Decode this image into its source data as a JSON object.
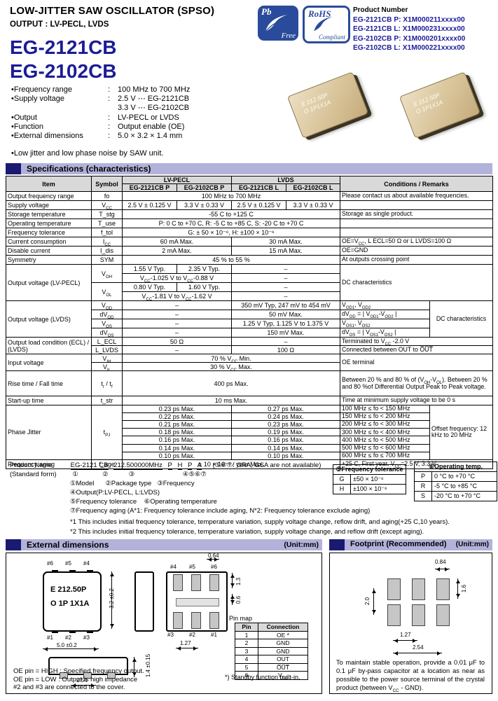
{
  "header": {
    "title": "LOW-JITTER SAW OSCILLATOR (SPSO)",
    "subtitle": "OUTPUT : LV-PECL, LVDS",
    "model_line1": "EG-2121CB",
    "model_line2": "EG-2102CB",
    "pb_logo": {
      "pb": "Pb",
      "free": "Free"
    },
    "rohs_logo": {
      "rohs": "RoHS",
      "compliant": "Compliant"
    },
    "product_number_label": "Product Number",
    "product_numbers": [
      "EG-2121CB P: X1M000211xxxx00",
      "EG-2121CB L: X1M000231xxxx00",
      "EG-2102CB P: X1M000201xxxx00",
      "EG-2102CB L: X1M000221xxxx00"
    ],
    "chip_marking1": "E 212.50P",
    "chip_marking2": "O 1P1X1A"
  },
  "features": {
    "rows": [
      {
        "label": "•Frequency range",
        "colon": ":",
        "value": "100 MHz to 700 MHz"
      },
      {
        "label": "•Supply voltage",
        "colon": ":",
        "value": "2.5 V ⋯ EG-2121CB"
      },
      {
        "label": "",
        "colon": "",
        "value": "3.3 V ⋯ EG-2102CB"
      },
      {
        "label": "•Output",
        "colon": ":",
        "value": "LV-PECL or LVDS"
      },
      {
        "label": "•Function",
        "colon": ":",
        "value": "Output enable (OE)"
      },
      {
        "label": "•External dimensions",
        "colon": ":",
        "value": "5.0 × 3.2 × 1.4 mm"
      }
    ],
    "note": "•Low jitter and low phase noise by SAW unit."
  },
  "spec": {
    "section_title": "Specifications (characteristics)",
    "h_item": "Item",
    "h_symbol": "Symbol",
    "h_pecl": "LV-PECL",
    "h_lvds": "LVDS",
    "h_cond": "Conditions / Remarks",
    "h_m1": "EG-2121CB P",
    "h_m2": "EG-2102CB P",
    "h_m3": "EG-2121CB L",
    "h_m4": "EG-2102CB L",
    "rows": {
      "ofr": {
        "item": "Output frequency range",
        "sym": "fo",
        "val": "100 MHz to 700 MHz",
        "cond": "Please contact us about available frequencies."
      },
      "vcc": {
        "item": "Supply voltage",
        "sym": "V~CC~",
        "v1": "2.5 V ± 0.125 V",
        "v2": "3.3 V ± 0.33 V",
        "v3": "2.5 V ± 0.125 V",
        "v4": "3.3 V ± 0.33 V",
        "cond": ""
      },
      "tstg": {
        "item": "Storage temperature",
        "sym": "T_stg",
        "val": "-55 C to +125 C",
        "cond": "Storage as single product."
      },
      "tuse": {
        "item": "Operating temperature",
        "sym": "T_use",
        "val": "P: 0 C to +70 C, R: -5 C to +85 C, S: -20 C to +70 C",
        "cond": ""
      },
      "ftol": {
        "item": "Frequency tolerance",
        "sym": "f_tol",
        "val": "G: ± 50 × 10⁻⁶, H: ±100 × 10⁻⁶",
        "cond": ""
      },
      "icc": {
        "item": "Current consumption",
        "sym": "I~CC~",
        "pecl": "60 mA Max.",
        "lvds": "30 mA Max.",
        "cond": "OE=V~CC~, L ECL=50 Ω or L LVDS=100 Ω"
      },
      "idis": {
        "item": "Disable current",
        "sym": "I_dis",
        "pecl": "2 mA Max.",
        "lvds": "15 mA Max.",
        "cond": "OE=GND"
      },
      "symmetry": {
        "item": "Symmetry",
        "sym": "SYM",
        "val": "45 % to 55 %",
        "cond": "At outputs crossing point"
      },
      "pecl_out": {
        "item": "Output voltage (LV-PECL)",
        "sym_voh": "V~OH~",
        "sym_vol": "V~OL~",
        "voh_t1": "1.55 V Typ.",
        "voh_t2": "2.35 V Typ.",
        "voh_rng": "V~CC~-1.025 V to V~CC~-0.88 V",
        "vol_t1": "0.80 V Typ.",
        "vol_t2": "1.60 V Typ.",
        "vol_rng": "V~CC~-1.81 V to V~CC~-1.62 V",
        "dash": "–",
        "cond": "DC characteristics"
      },
      "lvds_out": {
        "item": "Output voltage (LVDS)",
        "sym_vod": "V~OD~",
        "sym_dvod": "dV~OD~",
        "sym_vos": "V~OS~",
        "sym_dvos": "dV~OS~",
        "dash": "–",
        "vod": "350 mV Typ,  247 mV to 454 mV",
        "dvod": "50 mV Max.",
        "vos": "1.25 V Typ,  1.125 V to 1.375 V",
        "dvos": "150 mV Max.",
        "c_vod": "V~OD1~, V~OD2~",
        "c_dvod": "dV~OD~ = | V~OD1~-V~OD2~ |",
        "c_vos": "V~OS1~, V~OS2~",
        "c_dvos": "dV~OS~ = | V~OS1~-V~OS2~ |",
        "cond": "DC characteristics"
      },
      "load": {
        "item": "Output load condition (ECL) / (LVDS)",
        "sym1": "L_ECL",
        "sym2": "L_LVDS",
        "v1": "50 Ω",
        "dash": "–",
        "v2": "100 Ω",
        "cond1": "Terminated to V~CC~ -2.0 V",
        "cond2": "Connected between OUT to O̅U̅T̅"
      },
      "input": {
        "item": "Input voltage",
        "sym1": "V~IH~",
        "sym2": "V~IL~",
        "v1": "70 % V~CC~ Min.",
        "v2": "30 % V~CC~ Max.",
        "cond": "OE terminal"
      },
      "trtf": {
        "item": "Rise time / Fall time",
        "sym": "t~r~ / t~f~",
        "val": "400 ps Max.",
        "cond": "Between 20 % and 80 % of (V~OH~-V~OL~). Between 20 % and 80 %of Differential Output Peak to Peak voltage."
      },
      "tstr": {
        "item": "Start-up time",
        "sym": "t_str",
        "val": "10 ms Max.",
        "cond": "Time at minimum supply voltage to be 0 s"
      },
      "jitter": {
        "item": "Phase Jitter",
        "sym": "t~PJ~",
        "offset": "Offset frequency: 12 kHz to 20 MHz",
        "rows": [
          {
            "p": "0.23 ps Max.",
            "l": "0.27 ps Max.",
            "f": "100 MHz ≤ fo < 150 MHz"
          },
          {
            "p": "0.22 ps Max.",
            "l": "0.24 ps Max.",
            "f": "150 MHz ≤ fo < 200 MHz"
          },
          {
            "p": "0.21 ps Max.",
            "l": "0.23 ps Max.",
            "f": "200 MHz ≤ fo < 300 MHz"
          },
          {
            "p": "0.18 ps Max.",
            "l": "0.19 ps Max.",
            "f": "300 MHz ≤ fo < 400 MHz"
          },
          {
            "p": "0.16 ps Max.",
            "l": "0.16 ps Max.",
            "f": "400 MHz ≤ fo < 500 MHz"
          },
          {
            "p": "0.14 ps Max.",
            "l": "0.14 ps Max.",
            "f": "500 MHz ≤ fo < 600 MHz"
          },
          {
            "p": "0.10 ps Max.",
            "l": "0.10 ps Max.",
            "f": "600 MHz ≤ fo ≤ 700 MHz"
          }
        ]
      },
      "aging": {
        "item": "Frequency aging",
        "sym": "f_age",
        "val": "± 10 × 10⁻⁶ / year Max.",
        "cond": "+25 C, First year, V~CC~=2.5 V, 3.3 V"
      }
    }
  },
  "product_name": {
    "label1": "Product Name",
    "label2": "(Standard form)",
    "segments": [
      "EG-2121 CB",
      "212.500000MHz",
      "P",
      "H",
      "P",
      "A"
    ],
    "availability_note": "(⑤⑥⑦: GRA, GSA are not available)",
    "digits_line": " ①             ②           ③                          ④⑤⑥⑦",
    "legend1": "①Model      ②Package type   ③Frequency",
    "legend2": "④Output(P:LV-PECL, L:LVDS)",
    "legend3": "⑤Frequency tolerance    ⑥Operating temperature",
    "legend4": "⑦Frequency aging (A*1: Frequency tolerance include aging, N*2: Frequency tolerance exclude aging)"
  },
  "tol_table": {
    "title": "⑤Frequency tolerance",
    "rows": [
      {
        "k": "G",
        "v": "±50 × 10⁻⁶"
      },
      {
        "k": "H",
        "v": "±100 × 10⁻⁶"
      }
    ]
  },
  "temp_table": {
    "title": "⑥Operating temp.",
    "rows": [
      {
        "k": "P",
        "v": "0 °C to +70 °C"
      },
      {
        "k": "R",
        "v": "-5 °C to +85 °C"
      },
      {
        "k": "S",
        "v": "-20 °C to +70 °C"
      }
    ]
  },
  "footnotes": [
    "*1   This includes initial frequency tolerance, temperature variation, supply voltage change, reflow drift, and aging(+25 C,10 years).",
    "*2   This includes initial frequency tolerance, temperature variation, supply voltage change, and reflow drift (except aging)."
  ],
  "ext": {
    "section_title": "External dimensions",
    "unit": "(Unit:mm)",
    "marking1": "E 212.50P",
    "marking2": "O 1P 1X1A",
    "top_pins_top": [
      "#6",
      "#5",
      "#4"
    ],
    "top_pins_bottom": [
      "#1",
      "#2",
      "#3"
    ],
    "dim_height": "3.2 ±0.2",
    "dim_width": "5.0 ±0.2",
    "dim_thickness": "1.4 ±0.15",
    "dim_pitch": "2.54",
    "bottom_pins_top": [
      "#4",
      "#5",
      "#6"
    ],
    "bottom_pins_bottom": [
      "#3",
      "#2",
      "#1"
    ],
    "dim_pad_w": "0.64",
    "dim_pad_edge": "1.3",
    "dim_pad_gap": "0.6",
    "dim_pad_pitch": "1.27",
    "pinmap_label": "Pin map",
    "pinmap_h1": "Pin",
    "pinmap_h2": "Connection",
    "pinmap_rows": [
      {
        "pin": "1",
        "conn": "OE *"
      },
      {
        "pin": "2",
        "conn": "GND"
      },
      {
        "pin": "3",
        "conn": "GND"
      },
      {
        "pin": "4",
        "conn": "OUT"
      },
      {
        "pin": "5",
        "conn": "O̅U̅T̅"
      },
      {
        "pin": "6",
        "conn": "V~CC~"
      }
    ],
    "pinmap_note": "*) Standby function built-in.",
    "notes": [
      "OE pin = HIGH : Specified frequency output.",
      "OE pin = LOW : Output is high impedance",
      "#2 and #3 are connected to the cover."
    ]
  },
  "fp": {
    "section_title": "Footprint (Recommended)",
    "unit": "(Unit:mm)",
    "dim_pad_w": "0.84",
    "dim_pad_h": "1.6",
    "dim_row_gap": "2.0",
    "dim_pitch1": "1.27",
    "dim_pitch2": "2.54",
    "note": "To maintain stable operation, provide a 0.01 μF to 0.1 μF by-pass capacitor at a location as near as possible to the power source terminal of the crystal product (between V~CC~ - GND)."
  },
  "colors": {
    "navy_text": "#1c1c96",
    "bar": "#b2b2da",
    "bar_square": "#1a1a72",
    "header_gray": "#d9d9d9",
    "pad_gray": "#c6c6c6"
  }
}
